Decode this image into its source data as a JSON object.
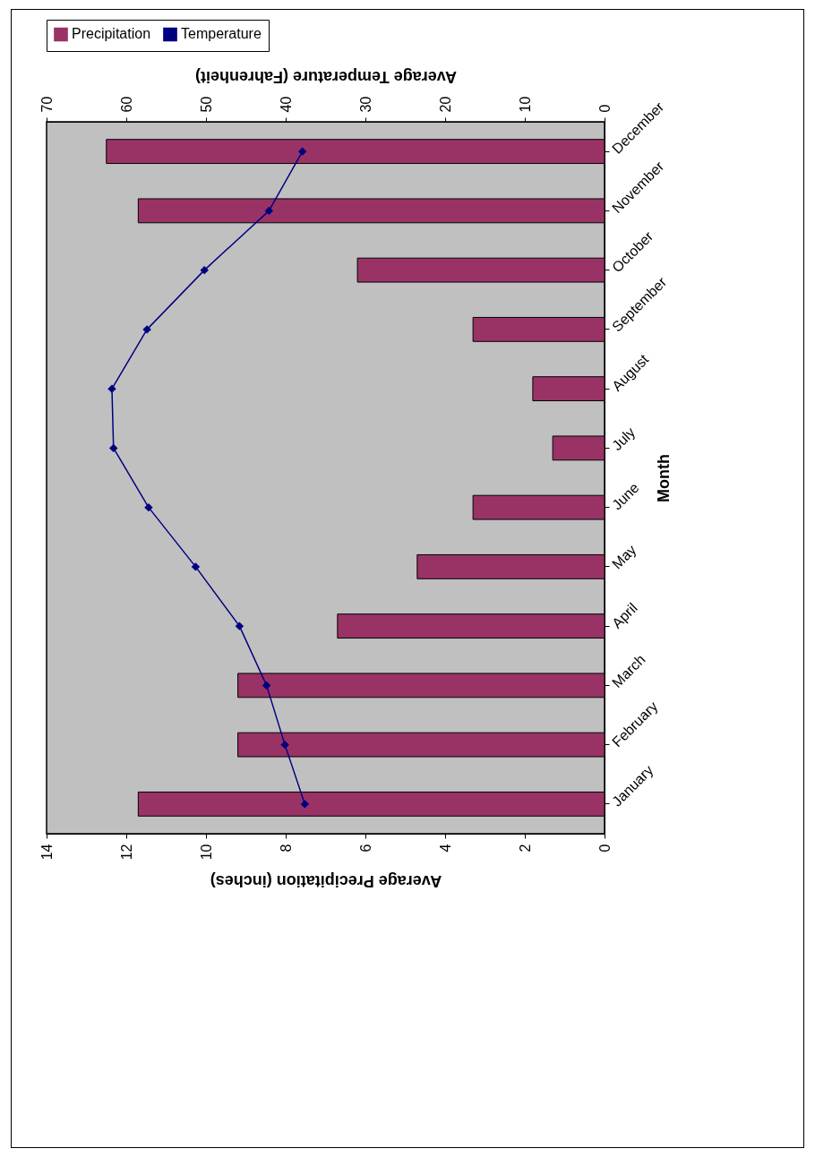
{
  "chart_data": {
    "type": "bar",
    "orientation": "horizontal",
    "categories": [
      "December",
      "November",
      "October",
      "September",
      "August",
      "July",
      "June",
      "May",
      "April",
      "March",
      "February",
      "January"
    ],
    "series": [
      {
        "name": "Precipitation",
        "color": "#993366",
        "values": [
          12.5,
          11.7,
          6.2,
          3.3,
          1.8,
          1.3,
          3.3,
          4.7,
          6.7,
          9.2,
          9.2,
          11.7
        ]
      },
      {
        "name": "Temperature",
        "type": "line",
        "axis": "x2",
        "color": "#000080",
        "values": [
          37.9,
          42.1,
          50.2,
          57.4,
          61.8,
          61.6,
          57.2,
          51.3,
          45.8,
          42.4,
          40.1,
          37.6
        ]
      }
    ],
    "ylabel": "Month",
    "xlabel": "Average Precipitation (inches)",
    "x2label": "Average Temperature (Fahrenheit)",
    "xlim": [
      14,
      0
    ],
    "xticks": [
      14,
      12,
      10,
      8,
      6,
      4,
      2,
      0
    ],
    "x2lim": [
      70,
      0
    ],
    "x2ticks": [
      70,
      60,
      50,
      40,
      30,
      20,
      10,
      0
    ],
    "marker": "diamond",
    "legend": "top",
    "grid": false
  }
}
